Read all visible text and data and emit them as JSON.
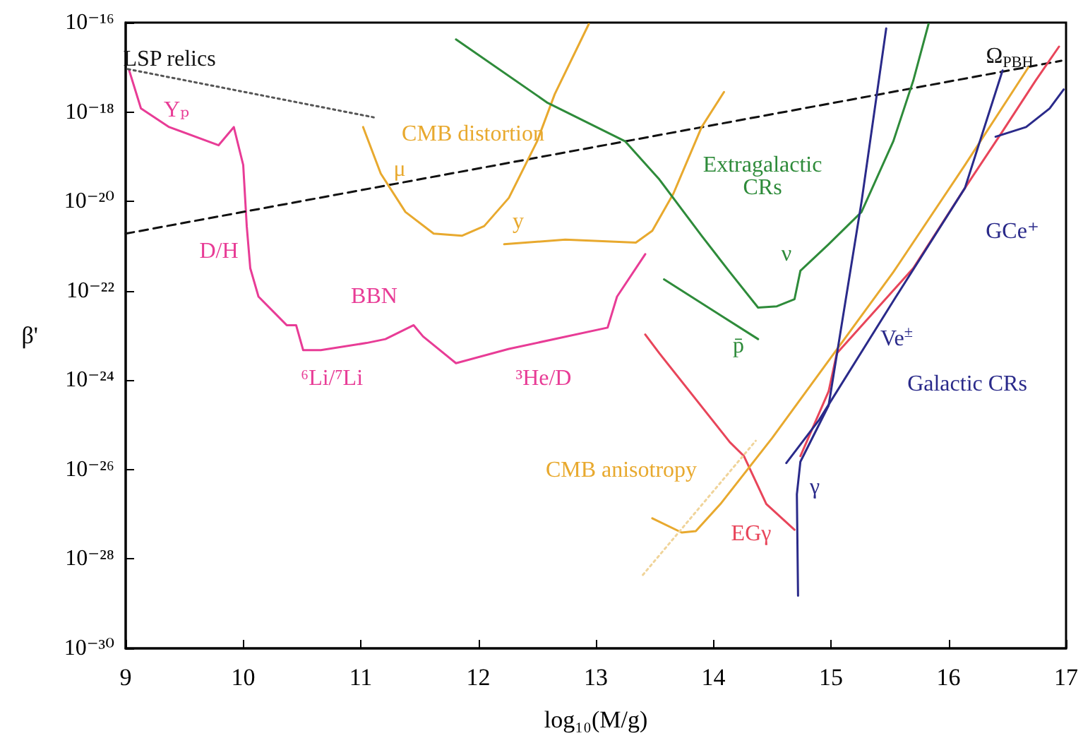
{
  "chart_data": {
    "type": "line",
    "xlabel": "log₁₀(M/g)",
    "ylabel": "β'",
    "log": "y",
    "marker": "none",
    "xlim": [
      9,
      17
    ],
    "xticks": [
      9,
      10,
      11,
      12,
      13,
      14,
      15,
      16,
      17
    ],
    "ylim": [
      1e-30,
      1e-16
    ],
    "yticks": [
      {
        "value": 1e-30,
        "label": "10⁻³⁰"
      },
      {
        "value": 1e-28,
        "label": "10⁻²⁸"
      },
      {
        "value": 1e-26,
        "label": "10⁻²⁶"
      },
      {
        "value": 1e-24,
        "label": "10⁻²⁴"
      },
      {
        "value": 1e-22,
        "label": "10⁻²²"
      },
      {
        "value": 1e-20,
        "label": "10⁻²⁰"
      },
      {
        "value": 1e-18,
        "label": "10⁻¹⁸"
      },
      {
        "value": 1e-16,
        "label": "10⁻¹⁶"
      }
    ],
    "series": [
      {
        "color": "#e83c96",
        "x": [
          9.03,
          9.13,
          9.37,
          9.79,
          9.92,
          10.0,
          10.03,
          10.06,
          10.13,
          10.37,
          10.45,
          10.51,
          10.66,
          11.05,
          11.21,
          11.45,
          11.53,
          11.81,
          12.26,
          13.1,
          13.18,
          13.42
        ],
        "values": [
          8.5e-18,
          1.2e-18,
          4.6e-19,
          1.8e-19,
          4.6e-19,
          6.5e-20,
          2.8e-21,
          3.2e-22,
          7.4e-23,
          1.7e-23,
          1.7e-23,
          4.7e-24,
          4.7e-24,
          6.8e-24,
          8.3e-24,
          1.7e-23,
          9.5e-24,
          2.4e-24,
          5e-24,
          1.5e-23,
          7.4e-23,
          6.6e-22
        ]
      },
      {
        "color": "#555555",
        "line_style": "dotted",
        "x": [
          9.02,
          11.11
        ],
        "values": [
          9.1e-18,
          7.6e-19
        ]
      },
      {
        "color": "#111111",
        "line_style": "dashed",
        "x": [
          9.0,
          16.96
        ],
        "values": [
          1.9e-21,
          1.4e-17
        ]
      },
      {
        "color": "#e8a92e",
        "x": [
          11.02,
          11.17,
          11.38,
          11.62,
          11.86,
          12.05,
          12.26,
          12.5,
          12.65,
          12.94
        ],
        "values": [
          4.6e-19,
          4.2e-20,
          5.8e-21,
          1.9e-21,
          1.7e-21,
          2.8e-21,
          1.2e-20,
          2.2e-19,
          2.5e-18,
          9.3e-17
        ]
      },
      {
        "color": "#e8a92e",
        "x": [
          12.22,
          12.74,
          13.34,
          13.48,
          13.66,
          13.9,
          14.09
        ],
        "values": [
          1.1e-21,
          1.4e-21,
          1.2e-21,
          2.2e-21,
          1.5e-20,
          4.6e-19,
          2.8e-18
        ]
      },
      {
        "color": "#2e8b3a",
        "x": [
          11.81,
          12.59,
          13.25,
          13.54,
          13.9,
          14.14,
          14.38,
          14.54,
          14.69,
          14.74,
          14.98,
          15.26,
          15.53,
          15.7,
          15.83
        ],
        "values": [
          4.2e-17,
          1.6e-18,
          2.2e-19,
          3.1e-20,
          1.7e-21,
          2.6e-22,
          4.2e-23,
          4.5e-23,
          6.5e-23,
          2.8e-22,
          1.1e-21,
          5.8e-21,
          2.2e-19,
          5e-18,
          9.3e-17
        ]
      },
      {
        "color": "#2e8b3a",
        "x": [
          13.58,
          14.38
        ],
        "values": [
          1.8e-22,
          8.3e-24
        ]
      },
      {
        "color": "#e8455a",
        "x": [
          13.42,
          13.54,
          14.14,
          14.26,
          14.45,
          14.69
        ],
        "values": [
          1.05e-23,
          4e-24,
          4.1e-26,
          2e-26,
          1.7e-27,
          4.5e-28
        ]
      },
      {
        "color": "#e8455a",
        "x": [
          14.74,
          14.98,
          15.05,
          15.7,
          16.14,
          16.46,
          16.74,
          16.94
        ],
        "values": [
          2e-26,
          5.6e-25,
          4e-24,
          3.2e-22,
          2e-20,
          3.7e-19,
          5e-18,
          2.9e-17
        ]
      },
      {
        "color": "#e8a92e",
        "x": [
          13.48,
          13.73,
          13.85,
          14.06,
          14.5,
          15.53,
          16.14,
          16.68
        ],
        "values": [
          8.1e-28,
          3.9e-28,
          4.2e-28,
          1.7e-27,
          5.1e-26,
          2.6e-22,
          6.5e-20,
          1e-17
        ]
      },
      {
        "color": "#f0d49a",
        "line_style": "dotted",
        "x": [
          13.4,
          14.36
        ],
        "values": [
          4.4e-29,
          4.4e-26
        ]
      },
      {
        "color": "#2a2a8a",
        "x": [
          14.72,
          14.71,
          14.74,
          14.98,
          15.26,
          15.47
        ],
        "values": [
          1.5e-29,
          2.8e-27,
          1.5e-26,
          2.7e-25,
          9.8e-21,
          7.4e-17
        ]
      },
      {
        "color": "#2a2a8a",
        "x": [
          14.62,
          14.9,
          15.53,
          16.14,
          16.46
        ],
        "values": [
          1.4e-26,
          1.3e-25,
          5.9e-23,
          2e-20,
          8.5e-18
        ]
      },
      {
        "color": "#2a2a8a",
        "x": [
          16.4,
          16.66,
          16.86,
          16.98
        ],
        "values": [
          2.8e-19,
          4.6e-19,
          1.2e-18,
          3.2e-18
        ]
      }
    ],
    "annotations": [
      "LSP relics",
      "Yₚ",
      "D/H",
      "BBN",
      "⁶Li/⁷Li",
      "³He/D",
      "CMB distortion",
      "μ",
      "y",
      "Extragalactic\nCRs",
      "ν",
      "p̄",
      "Ve$^{±}$",
      "Galactic CRs",
      "GCe⁺",
      "Ω$_{PBH}$",
      "CMB anisotropy",
      "γ",
      "EGγ"
    ]
  }
}
